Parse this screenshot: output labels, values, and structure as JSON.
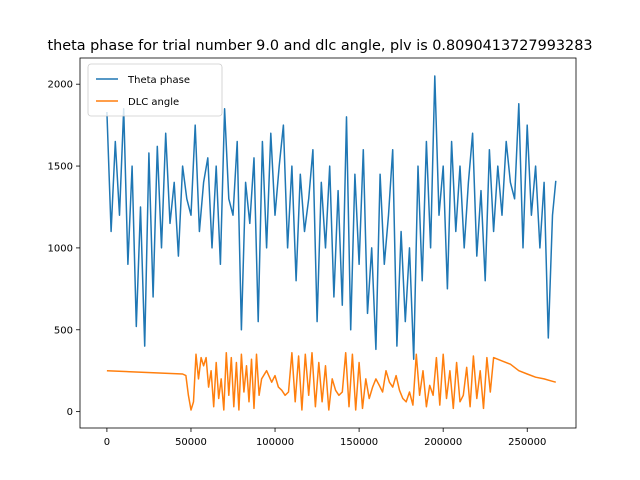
{
  "chart_data": {
    "type": "line",
    "title": "theta phase for trial number 9.0 and dlc angle, plv is 0.8090413727993283",
    "xlabel": "",
    "ylabel": "",
    "xlim": [
      -16000,
      279000
    ],
    "ylim": [
      -100,
      2160
    ],
    "grid": false,
    "legend_position": "top-left",
    "x_ticks": [
      0,
      50000,
      100000,
      150000,
      200000,
      250000
    ],
    "x_tick_labels": [
      "0",
      "50000",
      "100000",
      "150000",
      "200000",
      "250000"
    ],
    "y_ticks": [
      0,
      500,
      1000,
      1500,
      2000
    ],
    "y_tick_labels": [
      "0",
      "500",
      "1000",
      "1500",
      "2000"
    ],
    "series": [
      {
        "name": "Theta phase",
        "color": "#1f77b4",
        "x": [
          0,
          2500,
          5000,
          7500,
          10000,
          12500,
          15000,
          17500,
          20000,
          22500,
          25000,
          27500,
          30000,
          32500,
          35000,
          37500,
          40000,
          42500,
          45000,
          47500,
          50000,
          52500,
          55000,
          57500,
          60000,
          62500,
          65000,
          67500,
          70000,
          72500,
          75000,
          77500,
          80000,
          82500,
          85000,
          87500,
          90000,
          92500,
          95000,
          97500,
          100000,
          102500,
          105000,
          107500,
          110000,
          112500,
          115000,
          117500,
          120000,
          122500,
          125000,
          127500,
          130000,
          132500,
          135000,
          137500,
          140000,
          142500,
          145000,
          147500,
          150000,
          152500,
          155000,
          157500,
          160000,
          162500,
          165000,
          167500,
          170000,
          172500,
          175000,
          177500,
          180000,
          182500,
          185000,
          187500,
          190000,
          192500,
          195000,
          197500,
          200000,
          202500,
          205000,
          207500,
          210000,
          212500,
          215000,
          217500,
          220000,
          222500,
          225000,
          227500,
          230000,
          232500,
          235000,
          237500,
          240000,
          242500,
          245000,
          247500,
          250000,
          252500,
          255000,
          257500,
          260000,
          262500,
          265000,
          267000
        ],
        "values": [
          1830,
          1100,
          1650,
          1200,
          1850,
          900,
          1500,
          520,
          1250,
          400,
          1580,
          700,
          1620,
          1000,
          1700,
          1150,
          1400,
          950,
          1500,
          1300,
          1200,
          1750,
          1100,
          1400,
          1550,
          1000,
          1500,
          900,
          1850,
          1300,
          1200,
          1650,
          500,
          1400,
          1150,
          1550,
          550,
          1650,
          1000,
          1700,
          1200,
          1500,
          1750,
          1000,
          1500,
          800,
          1450,
          1100,
          1300,
          1600,
          550,
          1400,
          1000,
          1500,
          700,
          1350,
          650,
          1800,
          500,
          1450,
          900,
          1600,
          600,
          1000,
          380,
          1450,
          900,
          1200,
          1600,
          400,
          1100,
          550,
          1000,
          320,
          1500,
          800,
          1650,
          1000,
          2050,
          1200,
          1500,
          750,
          1650,
          1100,
          1500,
          1000,
          1400,
          1700,
          950,
          1350,
          800,
          1600,
          1100,
          1500,
          1200,
          1650,
          1400,
          1300,
          1880,
          1000,
          1750,
          1200,
          1500,
          1000,
          1400,
          450,
          1200,
          1410
        ]
      },
      {
        "name": "DLC angle",
        "color": "#ff7f0e",
        "x": [
          0,
          45000,
          47000,
          48500,
          50000,
          51500,
          53000,
          54500,
          56000,
          57500,
          59000,
          60500,
          62000,
          63500,
          65000,
          66500,
          68000,
          69500,
          71000,
          72500,
          74000,
          75500,
          77000,
          78500,
          80000,
          81500,
          83000,
          84500,
          86000,
          87500,
          89000,
          90500,
          92000,
          95000,
          98000,
          100000,
          102000,
          104000,
          106000,
          108000,
          110000,
          112000,
          114000,
          116000,
          118000,
          120000,
          122000,
          124000,
          126000,
          128000,
          130000,
          132000,
          134000,
          136000,
          138000,
          140000,
          142000,
          144000,
          146000,
          148000,
          150000,
          152000,
          154000,
          156000,
          158000,
          160000,
          162000,
          164000,
          166000,
          168000,
          170000,
          172000,
          174000,
          176000,
          178000,
          180000,
          182000,
          184000,
          186000,
          188000,
          190000,
          192000,
          194000,
          196000,
          198000,
          200000,
          202000,
          204000,
          206000,
          208000,
          210000,
          212000,
          214000,
          216000,
          218000,
          220000,
          222000,
          224000,
          226000,
          228000,
          230000,
          235000,
          240000,
          245000,
          250000,
          255000,
          260000,
          265000,
          267000
        ],
        "values": [
          250,
          230,
          220,
          100,
          10,
          60,
          350,
          200,
          330,
          280,
          330,
          150,
          250,
          30,
          300,
          80,
          200,
          10,
          360,
          100,
          330,
          30,
          300,
          10,
          350,
          120,
          280,
          60,
          320,
          20,
          350,
          100,
          200,
          250,
          180,
          220,
          150,
          130,
          100,
          120,
          360,
          60,
          340,
          10,
          350,
          100,
          360,
          30,
          300,
          60,
          280,
          10,
          200,
          130,
          100,
          120,
          360,
          30,
          350,
          10,
          300,
          20,
          200,
          80,
          150,
          200,
          160,
          120,
          250,
          180,
          150,
          220,
          130,
          80,
          60,
          120,
          40,
          350,
          100,
          250,
          30,
          160,
          100,
          330,
          40,
          350,
          80,
          250,
          20,
          300,
          60,
          100,
          270,
          30,
          340,
          80,
          250,
          20,
          330,
          120,
          330,
          310,
          290,
          250,
          230,
          210,
          200,
          185,
          180
        ]
      }
    ]
  }
}
